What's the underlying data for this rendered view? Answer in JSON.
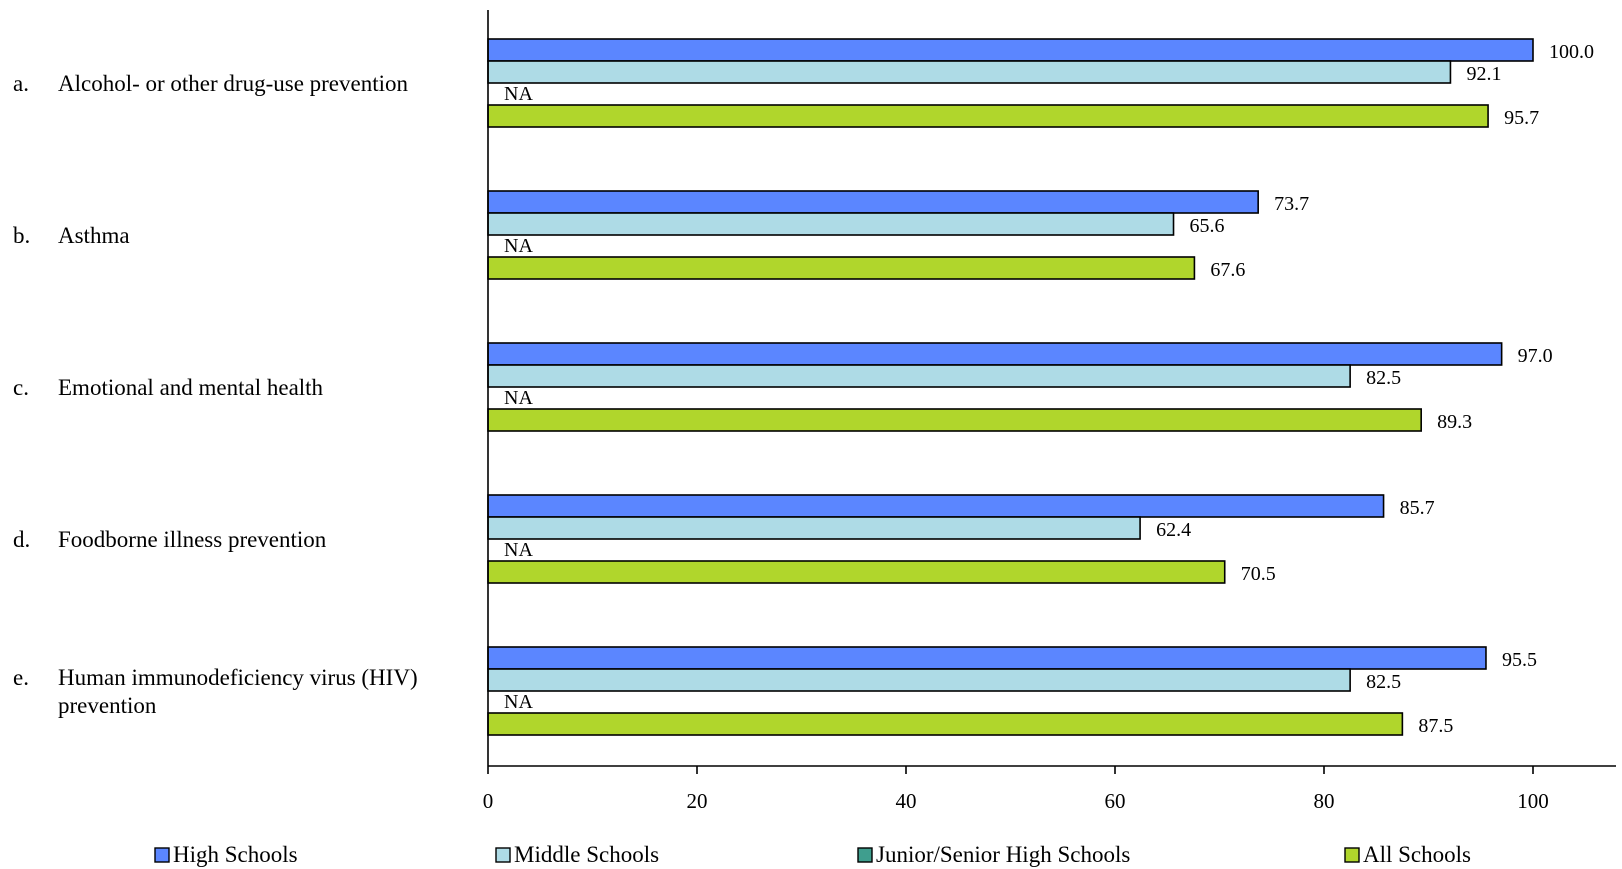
{
  "chart_data": {
    "type": "bar",
    "orientation": "horizontal",
    "xlim": [
      0,
      100
    ],
    "xticks": [
      0,
      20,
      40,
      60,
      80,
      100
    ],
    "grid": false,
    "legend_placement": "bottom",
    "categories": [
      {
        "letter": "a.",
        "lines": [
          "Alcohol- or other drug-use prevention"
        ]
      },
      {
        "letter": "b.",
        "lines": [
          "Asthma"
        ]
      },
      {
        "letter": "c.",
        "lines": [
          "Emotional and mental health"
        ]
      },
      {
        "letter": "d.",
        "lines": [
          "Foodborne illness prevention"
        ]
      },
      {
        "letter": "e.",
        "lines": [
          "Human immunodeficiency virus (HIV)",
          "prevention"
        ]
      }
    ],
    "series": [
      {
        "name": "High Schools",
        "color": "#5b86ff",
        "values": [
          100.0,
          73.7,
          97.0,
          85.7,
          95.5
        ],
        "labels": [
          "100.0",
          "73.7",
          "97.0",
          "85.7",
          "95.5"
        ]
      },
      {
        "name": "Middle Schools",
        "color": "#aedbe6",
        "values": [
          92.1,
          65.6,
          82.5,
          62.4,
          82.5
        ],
        "labels": [
          "92.1",
          "65.6",
          "82.5",
          "62.4",
          "82.5"
        ]
      },
      {
        "name": "Junior/Senior High Schools",
        "color": "#3f9e8e",
        "values": [
          null,
          null,
          null,
          null,
          null
        ],
        "labels": [
          "NA",
          "NA",
          "NA",
          "NA",
          "NA"
        ]
      },
      {
        "name": "All Schools",
        "color": "#b0d62c",
        "values": [
          95.7,
          67.6,
          89.3,
          70.5,
          87.5
        ],
        "labels": [
          "95.7",
          "67.6",
          "89.3",
          "70.5",
          "87.5"
        ]
      }
    ]
  }
}
